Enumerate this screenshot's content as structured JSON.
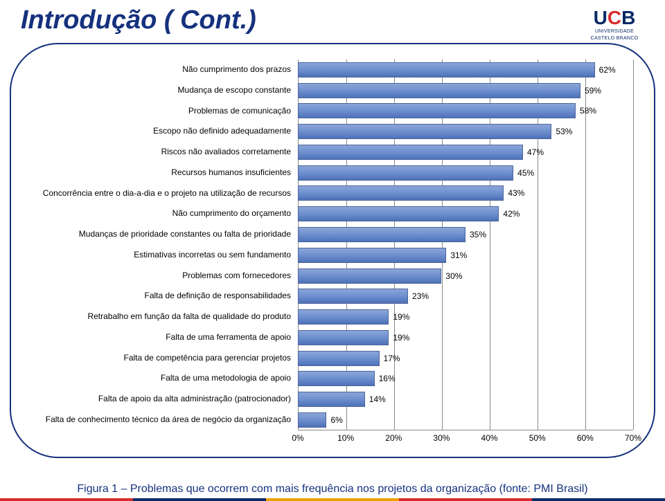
{
  "title": "Introdução ( Cont.)",
  "logo": {
    "letters": "UCB",
    "sub1": "UNIVERSIDADE",
    "sub2": "CASTELO BRANCO"
  },
  "chart": {
    "type": "bar",
    "orientation": "horizontal",
    "x_min": 0,
    "x_max": 70,
    "x_tick_step": 10,
    "x_ticks": [
      "0%",
      "10%",
      "20%",
      "30%",
      "40%",
      "50%",
      "60%",
      "70%"
    ],
    "bar_color_top": "#8aa6d8",
    "bar_color_bottom": "#4d72b8",
    "bar_border": "#4d6499",
    "grid_color": "#8a8a8a",
    "background_color": "#ffffff",
    "label_fontsize": 12,
    "value_fontsize": 12,
    "items": [
      {
        "label": "Não cumprimento dos prazos",
        "value": 62,
        "value_label": "62%"
      },
      {
        "label": "Mudança de escopo constante",
        "value": 59,
        "value_label": "59%"
      },
      {
        "label": "Problemas de comunicação",
        "value": 58,
        "value_label": "58%"
      },
      {
        "label": "Escopo não definido adequadamente",
        "value": 53,
        "value_label": "53%"
      },
      {
        "label": "Riscos não avaliados corretamente",
        "value": 47,
        "value_label": "47%"
      },
      {
        "label": "Recursos humanos insuficientes",
        "value": 45,
        "value_label": "45%"
      },
      {
        "label": "Concorrência entre o dia-a-dia e o projeto na utilização de recursos",
        "value": 43,
        "value_label": "43%"
      },
      {
        "label": "Não cumprimento do orçamento",
        "value": 42,
        "value_label": "42%"
      },
      {
        "label": "Mudanças de prioridade constantes ou falta de prioridade",
        "value": 35,
        "value_label": "35%"
      },
      {
        "label": "Estimativas incorretas ou sem fundamento",
        "value": 31,
        "value_label": "31%"
      },
      {
        "label": "Problemas com fornecedores",
        "value": 30,
        "value_label": "30%"
      },
      {
        "label": "Falta de definição de responsabilidades",
        "value": 23,
        "value_label": "23%"
      },
      {
        "label": "Retrabalho em função da falta de qualidade do produto",
        "value": 19,
        "value_label": "19%"
      },
      {
        "label": "Falta de uma ferramenta de apoio",
        "value": 19,
        "value_label": "19%"
      },
      {
        "label": "Falta de competência para gerenciar projetos",
        "value": 17,
        "value_label": "17%"
      },
      {
        "label": "Falta de uma metodologia de apoio",
        "value": 16,
        "value_label": "16%"
      },
      {
        "label": "Falta de apoio da alta administração (patrocionador)",
        "value": 14,
        "value_label": "14%"
      },
      {
        "label": "Falta de conhecimento técnico da área de negócio da organização",
        "value": 6,
        "value_label": "6%"
      }
    ]
  },
  "caption": "Figura 1 – Problemas que ocorrem com mais frequência nos projetos da organização (fonte: PMI Brasil)",
  "footer_colors": [
    "#d82c2c",
    "#0a2a66",
    "#f0a000",
    "#d82c2c",
    "#0a2a66"
  ],
  "colors": {
    "title": "#15317e",
    "frame": "#15317e",
    "caption": "#15317e"
  }
}
